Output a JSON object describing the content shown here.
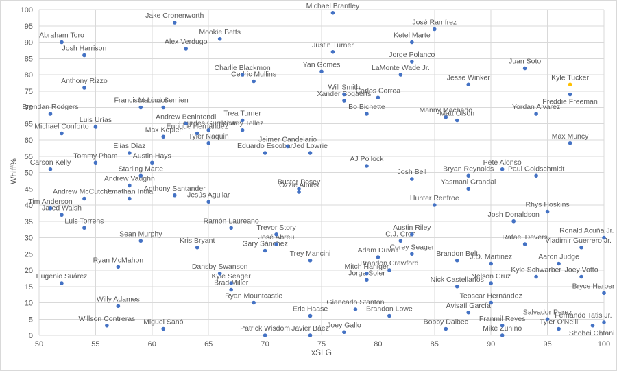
{
  "chart_data": {
    "type": "scatter",
    "title": "",
    "xlabel": "xSLG",
    "ylabel": "Whiff%",
    "xlim": [
      50,
      100
    ],
    "ylim": [
      0,
      100
    ],
    "x_ticks": [
      50,
      55,
      60,
      65,
      70,
      75,
      80,
      85,
      90,
      95,
      100
    ],
    "y_ticks": [
      0,
      5,
      10,
      15,
      20,
      25,
      30,
      35,
      40,
      45,
      50,
      55,
      60,
      65,
      70,
      75,
      80,
      85,
      90,
      95,
      100
    ],
    "grid": true,
    "legend": "none",
    "colors": {
      "point": "#4472C4",
      "highlight": "#FFC000",
      "gridline": "#D9D9D9",
      "text": "#595959",
      "background": "#FFFFFF"
    },
    "highlighted_player": "Kyle Tucker",
    "points": [
      {
        "name": "Michael Brantley",
        "x": 76,
        "y": 99
      },
      {
        "name": "Jake Cronenworth",
        "x": 62,
        "y": 96
      },
      {
        "name": "José Ramírez",
        "x": 85,
        "y": 94
      },
      {
        "name": "Mookie Betts",
        "x": 66,
        "y": 91
      },
      {
        "name": "Abraham Toro",
        "x": 52,
        "y": 90
      },
      {
        "name": "Ketel Marte",
        "x": 83,
        "y": 90
      },
      {
        "name": "Alex Verdugo",
        "x": 63,
        "y": 88
      },
      {
        "name": "Justin Turner",
        "x": 76,
        "y": 87
      },
      {
        "name": "Josh Harrison",
        "x": 54,
        "y": 86
      },
      {
        "name": "Jorge Polanco",
        "x": 83,
        "y": 84
      },
      {
        "name": "Juan Soto",
        "x": 93,
        "y": 82
      },
      {
        "name": "Yan Gomes",
        "x": 75,
        "y": 81
      },
      {
        "name": "Charlie Blackmon",
        "x": 68,
        "y": 80
      },
      {
        "name": "LaMonte Wade Jr.",
        "x": 82,
        "y": 80
      },
      {
        "name": "Cedric Mullins",
        "x": 69,
        "y": 78
      },
      {
        "name": "Jesse Winker",
        "x": 88,
        "y": 77
      },
      {
        "name": "Kyle Tucker",
        "x": 97,
        "y": 77,
        "highlight": true
      },
      {
        "name": "Anthony Rizzo",
        "x": 54,
        "y": 76
      },
      {
        "name": "Will Smith",
        "x": 77,
        "y": 74
      },
      {
        "name": "Freddie Freeman",
        "x": 97,
        "y": 74,
        "label_pos": "below"
      },
      {
        "name": "Carlos Correa",
        "x": 80,
        "y": 73
      },
      {
        "name": "Xander Bogaerts",
        "x": 77,
        "y": 72
      },
      {
        "name": "Francisco Lindor",
        "x": 59,
        "y": 70
      },
      {
        "name": "Marcus Semien",
        "x": 61,
        "y": 70
      },
      {
        "name": "Brendan Rodgers",
        "x": 51,
        "y": 68
      },
      {
        "name": "Bo Bichette",
        "x": 79,
        "y": 68
      },
      {
        "name": "Yordan Alvarez",
        "x": 94,
        "y": 68
      },
      {
        "name": "Manny Machado",
        "x": 86,
        "y": 67
      },
      {
        "name": "Trea Turner",
        "x": 68,
        "y": 66
      },
      {
        "name": "Matt Olson",
        "x": 87,
        "y": 66
      },
      {
        "name": "Andrew Benintendi",
        "x": 63,
        "y": 65
      },
      {
        "name": "Luis Urías",
        "x": 55,
        "y": 64
      },
      {
        "name": "Rowdy Tellez",
        "x": 68,
        "y": 63
      },
      {
        "name": "Lourdes Gurriel Jr.",
        "x": 65,
        "y": 63
      },
      {
        "name": "Michael Conforto",
        "x": 52,
        "y": 62
      },
      {
        "name": "Enrique Hernández",
        "x": 64,
        "y": 62
      },
      {
        "name": "Max Kepler",
        "x": 61,
        "y": 61
      },
      {
        "name": "Tyler Naquin",
        "x": 65,
        "y": 59
      },
      {
        "name": "Max Muncy",
        "x": 97,
        "y": 59
      },
      {
        "name": "Jeimer Candelario",
        "x": 72,
        "y": 58
      },
      {
        "name": "Elias Díaz",
        "x": 58,
        "y": 56
      },
      {
        "name": "Eduardo Escobar",
        "x": 70,
        "y": 56
      },
      {
        "name": "Jed Lowrie",
        "x": 74,
        "y": 56
      },
      {
        "name": "Tommy Pham",
        "x": 55,
        "y": 53
      },
      {
        "name": "Austin Hays",
        "x": 60,
        "y": 53
      },
      {
        "name": "AJ Pollock",
        "x": 79,
        "y": 52
      },
      {
        "name": "Carson Kelly",
        "x": 51,
        "y": 51
      },
      {
        "name": "Pete Alonso",
        "x": 91,
        "y": 51
      },
      {
        "name": "Starling Marte",
        "x": 59,
        "y": 49
      },
      {
        "name": "Bryan Reynolds",
        "x": 88,
        "y": 49
      },
      {
        "name": "Paul Goldschmidt",
        "x": 94,
        "y": 49
      },
      {
        "name": "Josh Bell",
        "x": 83,
        "y": 48
      },
      {
        "name": "Andrew Vaughn",
        "x": 58,
        "y": 46
      },
      {
        "name": "Buster Posey",
        "x": 73,
        "y": 45
      },
      {
        "name": "Yasmani Grandal",
        "x": 88,
        "y": 45
      },
      {
        "name": "Ozzie Albies",
        "x": 73,
        "y": 44
      },
      {
        "name": "Anthony Santander",
        "x": 62,
        "y": 43
      },
      {
        "name": "Andrew McCutchen",
        "x": 54,
        "y": 42
      },
      {
        "name": "Jonathan India",
        "x": 58,
        "y": 42
      },
      {
        "name": "Jesús Aguilar",
        "x": 65,
        "y": 41
      },
      {
        "name": "Hunter Renfroe",
        "x": 85,
        "y": 40
      },
      {
        "name": "Tim Anderson",
        "x": 51,
        "y": 39
      },
      {
        "name": "Rhys Hoskins",
        "x": 95,
        "y": 38
      },
      {
        "name": "Jared Walsh",
        "x": 52,
        "y": 37
      },
      {
        "name": "Josh Donaldson",
        "x": 92,
        "y": 35
      },
      {
        "name": "Luis Torrens",
        "x": 54,
        "y": 33
      },
      {
        "name": "Ramón Laureano",
        "x": 67,
        "y": 33
      },
      {
        "name": "Trevor Story",
        "x": 71,
        "y": 31
      },
      {
        "name": "Austin Riley",
        "x": 83,
        "y": 31
      },
      {
        "name": "Ronald Acuña Jr.",
        "x": 100,
        "y": 30
      },
      {
        "name": "Sean Murphy",
        "x": 59,
        "y": 29
      },
      {
        "name": "C.J. Cron",
        "x": 82,
        "y": 29
      },
      {
        "name": "José Abreu",
        "x": 71,
        "y": 28
      },
      {
        "name": "Rafael Devers",
        "x": 93,
        "y": 28
      },
      {
        "name": "Kris Bryant",
        "x": 64,
        "y": 27
      },
      {
        "name": "Vladimir Guerrero Jr.",
        "x": 98,
        "y": 27
      },
      {
        "name": "Gary Sánchez",
        "x": 70,
        "y": 26
      },
      {
        "name": "Corey Seager",
        "x": 83,
        "y": 25
      },
      {
        "name": "Adam Duvall",
        "x": 80,
        "y": 24
      },
      {
        "name": "Trey Mancini",
        "x": 74,
        "y": 23
      },
      {
        "name": "Brandon Belt",
        "x": 87,
        "y": 23
      },
      {
        "name": "J.D. Martinez",
        "x": 90,
        "y": 22
      },
      {
        "name": "Aaron Judge",
        "x": 96,
        "y": 22
      },
      {
        "name": "Ryan McMahon",
        "x": 57,
        "y": 21
      },
      {
        "name": "Brandon Crawford",
        "x": 81,
        "y": 20
      },
      {
        "name": "Mitch Haniger",
        "x": 79,
        "y": 19
      },
      {
        "name": "Dansby Swanson",
        "x": 66,
        "y": 19
      },
      {
        "name": "Kyle Schwarber",
        "x": 94,
        "y": 18
      },
      {
        "name": "Joey Votto",
        "x": 98,
        "y": 18
      },
      {
        "name": "Jorge Soler",
        "x": 79,
        "y": 17
      },
      {
        "name": "Eugenio Suárez",
        "x": 52,
        "y": 16
      },
      {
        "name": "Kyle Seager",
        "x": 67,
        "y": 16
      },
      {
        "name": "Nelson Cruz",
        "x": 90,
        "y": 16
      },
      {
        "name": "Nick Castellanos",
        "x": 87,
        "y": 15
      },
      {
        "name": "Brad Miller",
        "x": 67,
        "y": 14
      },
      {
        "name": "Bryce Harper",
        "x": 100,
        "y": 13
      },
      {
        "name": "Ryan Mountcastle",
        "x": 69,
        "y": 10
      },
      {
        "name": "Teoscar Hernández",
        "x": 90,
        "y": 10
      },
      {
        "name": "Willy Adames",
        "x": 57,
        "y": 9
      },
      {
        "name": "Giancarlo Stanton",
        "x": 78,
        "y": 8
      },
      {
        "name": "Avisaíl García",
        "x": 88,
        "y": 7
      },
      {
        "name": "Eric Haase",
        "x": 74,
        "y": 6
      },
      {
        "name": "Brandon Lowe",
        "x": 81,
        "y": 6
      },
      {
        "name": "Salvador Perez",
        "x": 95,
        "y": 5
      },
      {
        "name": "Fernando Tatis Jr.",
        "x": 100,
        "y": 4
      },
      {
        "name": "Willson Contreras",
        "x": 56,
        "y": 3
      },
      {
        "name": "Franmil Reyes",
        "x": 91,
        "y": 3
      },
      {
        "name": "Shohei Ohtani",
        "x": 99,
        "y": 3,
        "label_pos": "below"
      },
      {
        "name": "Miguel Sanó",
        "x": 61,
        "y": 2
      },
      {
        "name": "Tyler O'Neill",
        "x": 96,
        "y": 2
      },
      {
        "name": "Bobby Dalbec",
        "x": 86,
        "y": 2
      },
      {
        "name": "Joey Gallo",
        "x": 77,
        "y": 1
      },
      {
        "name": "Mike Zunino",
        "x": 91,
        "y": 0
      },
      {
        "name": "Patrick Wisdom",
        "x": 70,
        "y": 0
      },
      {
        "name": "Javier Báez",
        "x": 74,
        "y": 0
      }
    ]
  }
}
